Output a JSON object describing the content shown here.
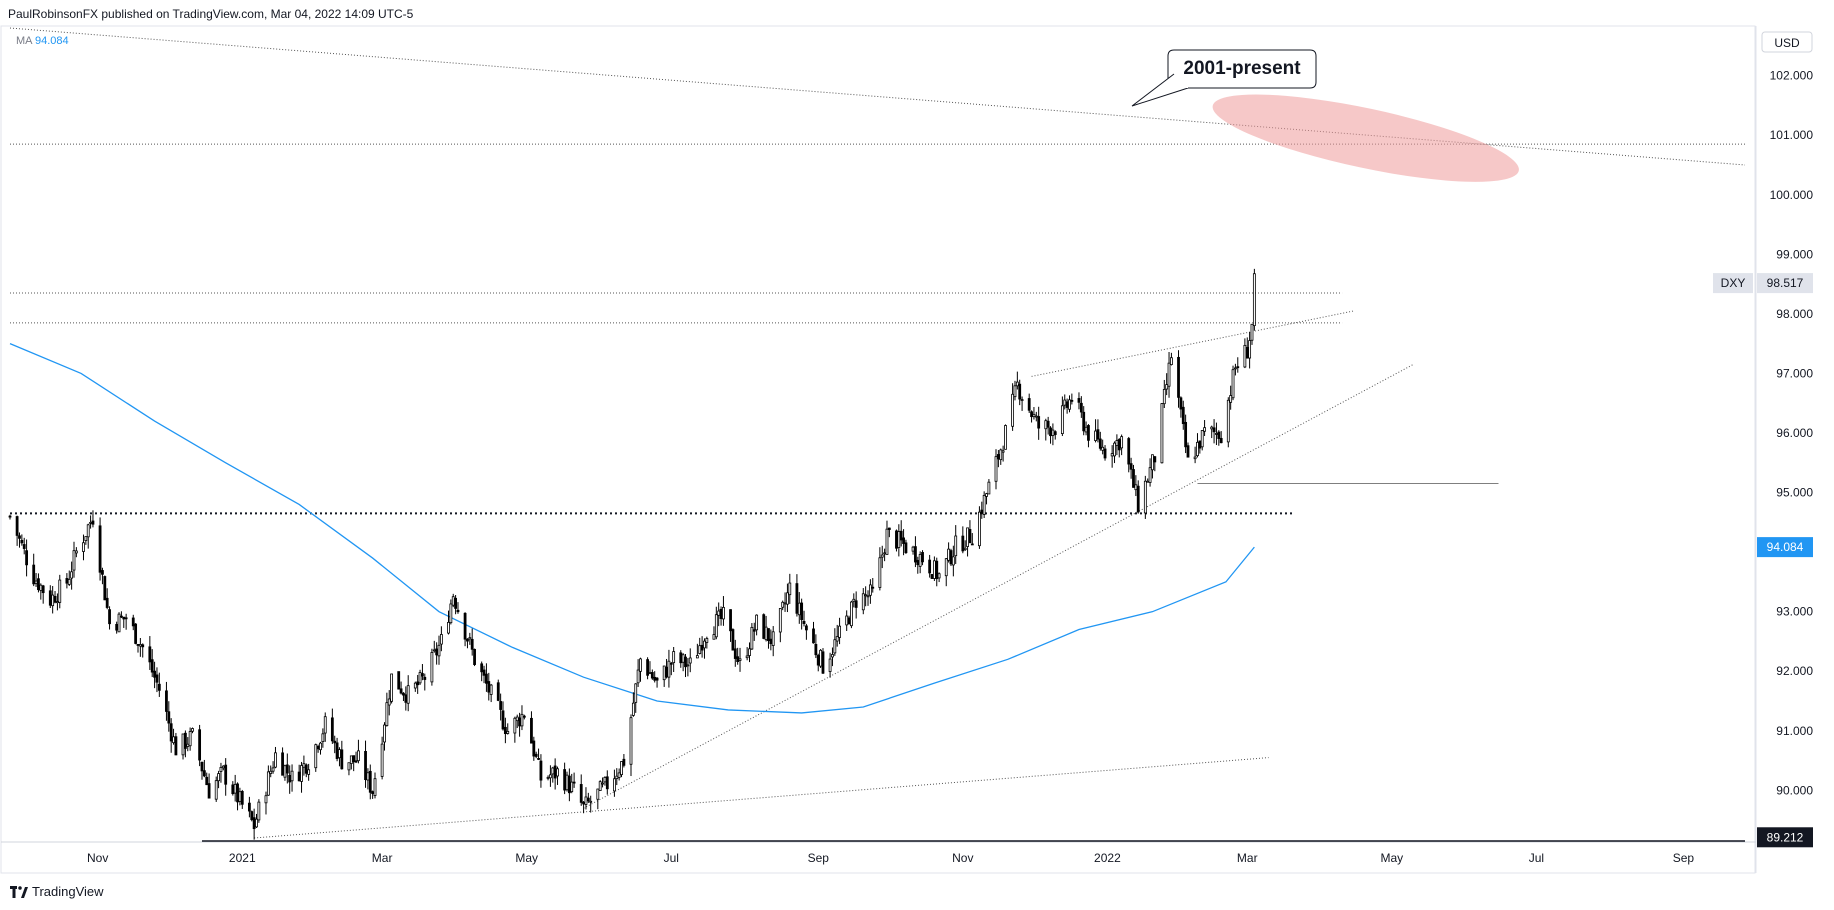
{
  "header": {
    "attribution": "PaulRobinsonFX published on TradingView.com, Mar 04, 2022 14:09 UTC-5"
  },
  "legend": {
    "ma_label": "MA",
    "ma_value": "94.084"
  },
  "footer": {
    "brand": "TradingView"
  },
  "colors": {
    "candle_up": "#ffffff",
    "candle_down": "#000000",
    "ma_line": "#2196f3",
    "zone": "#ef9a9a",
    "label_gray": "#e0e3eb",
    "ma_badge": "#2196f3",
    "price_axis_text": "#131722"
  },
  "chart_data": {
    "type": "candlestick",
    "symbol": "DXY",
    "currency": "USD",
    "annotation": "2001-present",
    "x_labels": [
      "Nov",
      "2021",
      "Mar",
      "May",
      "Jul",
      "Sep",
      "Nov",
      "2022",
      "Mar",
      "May",
      "Jul",
      "Sep"
    ],
    "x_label_dates": [
      "2020-11-01",
      "2021-01-01",
      "2021-03-01",
      "2021-05-01",
      "2021-07-01",
      "2021-09-01",
      "2021-11-01",
      "2022-01-01",
      "2022-03-01",
      "2022-05-01",
      "2022-07-01",
      "2022-09-01"
    ],
    "x_range": [
      "2020-09-25",
      "2022-09-27"
    ],
    "y_ticks": [
      90.0,
      91.0,
      92.0,
      93.0,
      94.0,
      95.0,
      96.0,
      97.0,
      98.0,
      99.0,
      100.0,
      101.0,
      102.0
    ],
    "y_tick_labels": [
      "90.000",
      "91.000",
      "92.000",
      "93.000",
      "94.000",
      "95.000",
      "96.000",
      "97.000",
      "98.000",
      "99.000",
      "100.000",
      "101.000",
      "102.000"
    ],
    "ylim": [
      89.2,
      102.8
    ],
    "price_labels": [
      {
        "name": "DXY",
        "value": 98.517,
        "text": "98.517"
      },
      {
        "name": "MA",
        "value": 94.084,
        "text": "94.084"
      },
      {
        "name": "low",
        "value": 89.212,
        "text": "89.212"
      }
    ],
    "close_path": [
      [
        "2020-09-25",
        94.6
      ],
      [
        "2020-10-05",
        93.6
      ],
      [
        "2020-10-12",
        93.2
      ],
      [
        "2020-10-19",
        93.5
      ],
      [
        "2020-10-23",
        94.0
      ],
      [
        "2020-10-30",
        94.6
      ],
      [
        "2020-11-06",
        92.8
      ],
      [
        "2020-11-13",
        92.9
      ],
      [
        "2020-11-20",
        92.4
      ],
      [
        "2020-11-27",
        91.7
      ],
      [
        "2020-12-04",
        90.7
      ],
      [
        "2020-12-11",
        90.9
      ],
      [
        "2020-12-18",
        90.0
      ],
      [
        "2020-12-24",
        90.3
      ],
      [
        "2021-01-06",
        89.4
      ],
      [
        "2021-01-15",
        90.6
      ],
      [
        "2021-01-22",
        90.2
      ],
      [
        "2021-01-29",
        90.5
      ],
      [
        "2021-02-05",
        91.1
      ],
      [
        "2021-02-12",
        90.5
      ],
      [
        "2021-02-19",
        90.5
      ],
      [
        "2021-02-25",
        90.0
      ],
      [
        "2021-03-05",
        91.9
      ],
      [
        "2021-03-12",
        91.6
      ],
      [
        "2021-03-19",
        91.9
      ],
      [
        "2021-03-26",
        92.5
      ],
      [
        "2021-03-31",
        93.3
      ],
      [
        "2021-04-09",
        92.2
      ],
      [
        "2021-04-16",
        91.6
      ],
      [
        "2021-04-23",
        91.0
      ],
      [
        "2021-04-30",
        91.3
      ],
      [
        "2021-05-07",
        90.2
      ],
      [
        "2021-05-14",
        90.3
      ],
      [
        "2021-05-21",
        90.0
      ],
      [
        "2021-05-25",
        89.7
      ],
      [
        "2021-06-04",
        90.1
      ],
      [
        "2021-06-11",
        90.5
      ],
      [
        "2021-06-18",
        92.2
      ],
      [
        "2021-06-25",
        91.8
      ],
      [
        "2021-07-02",
        92.2
      ],
      [
        "2021-07-09",
        92.1
      ],
      [
        "2021-07-16",
        92.7
      ],
      [
        "2021-07-23",
        92.9
      ],
      [
        "2021-07-30",
        92.1
      ],
      [
        "2021-08-06",
        92.8
      ],
      [
        "2021-08-13",
        92.5
      ],
      [
        "2021-08-20",
        93.4
      ],
      [
        "2021-08-27",
        92.7
      ],
      [
        "2021-09-03",
        92.1
      ],
      [
        "2021-09-10",
        92.6
      ],
      [
        "2021-09-17",
        93.2
      ],
      [
        "2021-09-24",
        93.3
      ],
      [
        "2021-09-30",
        94.3
      ],
      [
        "2021-10-08",
        94.1
      ],
      [
        "2021-10-15",
        93.9
      ],
      [
        "2021-10-22",
        93.6
      ],
      [
        "2021-10-29",
        94.1
      ],
      [
        "2021-11-05",
        94.3
      ],
      [
        "2021-11-12",
        95.1
      ],
      [
        "2021-11-19",
        96.0
      ],
      [
        "2021-11-24",
        96.8
      ],
      [
        "2021-12-03",
        96.1
      ],
      [
        "2021-12-10",
        96.1
      ],
      [
        "2021-12-17",
        96.6
      ],
      [
        "2021-12-24",
        96.0
      ],
      [
        "2021-12-31",
        95.7
      ],
      [
        "2022-01-07",
        95.9
      ],
      [
        "2022-01-14",
        94.8
      ],
      [
        "2022-01-21",
        95.6
      ],
      [
        "2022-01-28",
        97.3
      ],
      [
        "2022-02-04",
        95.5
      ],
      [
        "2022-02-11",
        96.0
      ],
      [
        "2022-02-18",
        96.0
      ],
      [
        "2022-02-24",
        97.1
      ],
      [
        "2022-03-01",
        97.4
      ],
      [
        "2022-03-03",
        97.8
      ],
      [
        "2022-03-04",
        98.5
      ]
    ],
    "moving_average": [
      [
        "2020-09-25",
        97.5
      ],
      [
        "2020-10-25",
        97.0
      ],
      [
        "2020-11-25",
        96.2
      ],
      [
        "2020-12-25",
        95.5
      ],
      [
        "2021-01-25",
        94.8
      ],
      [
        "2021-02-25",
        93.9
      ],
      [
        "2021-03-25",
        93.0
      ],
      [
        "2021-04-25",
        92.4
      ],
      [
        "2021-05-25",
        91.9
      ],
      [
        "2021-06-25",
        91.5
      ],
      [
        "2021-07-25",
        91.35
      ],
      [
        "2021-08-25",
        91.3
      ],
      [
        "2021-09-20",
        91.4
      ],
      [
        "2021-10-20",
        91.8
      ],
      [
        "2021-11-20",
        92.2
      ],
      [
        "2021-12-20",
        92.7
      ],
      [
        "2022-01-20",
        93.0
      ],
      [
        "2022-02-20",
        93.5
      ],
      [
        "2022-03-04",
        94.084
      ]
    ],
    "horizontal_levels": [
      {
        "value": 100.85,
        "style": "dotted",
        "from": "2020-09-25",
        "to": "2022-09-27"
      },
      {
        "value": 98.35,
        "style": "dotted",
        "from": "2020-09-25",
        "to": "2022-04-10"
      },
      {
        "value": 97.85,
        "style": "dotted",
        "from": "2020-09-25",
        "to": "2022-04-10"
      },
      {
        "value": 94.65,
        "style": "dotted-bold",
        "from": "2020-09-25",
        "to": "2022-03-20"
      },
      {
        "value": 95.15,
        "style": "solid-thin",
        "from": "2022-02-08",
        "to": "2022-06-15"
      },
      {
        "value": 89.15,
        "style": "solid",
        "from": "2020-12-15",
        "to": "2022-09-27"
      }
    ],
    "trend_lines": [
      {
        "name": "long-term-2001-present",
        "from": [
          "2020-09-25",
          102.8
        ],
        "to": [
          "2022-09-27",
          100.5
        ]
      },
      {
        "name": "upper-channel",
        "from": [
          "2021-11-30",
          96.95
        ],
        "to": [
          "2022-04-15",
          98.05
        ]
      },
      {
        "name": "rising-support",
        "from": [
          "2021-05-25",
          89.7
        ],
        "to": [
          "2022-05-10",
          97.15
        ]
      },
      {
        "name": "lower-support",
        "from": [
          "2021-01-06",
          89.2
        ],
        "to": [
          "2022-03-10",
          90.55
        ]
      }
    ],
    "zone": {
      "center": [
        "2022-04-20",
        100.95
      ],
      "rx_days": 22,
      "ry_value": 0.5
    }
  }
}
